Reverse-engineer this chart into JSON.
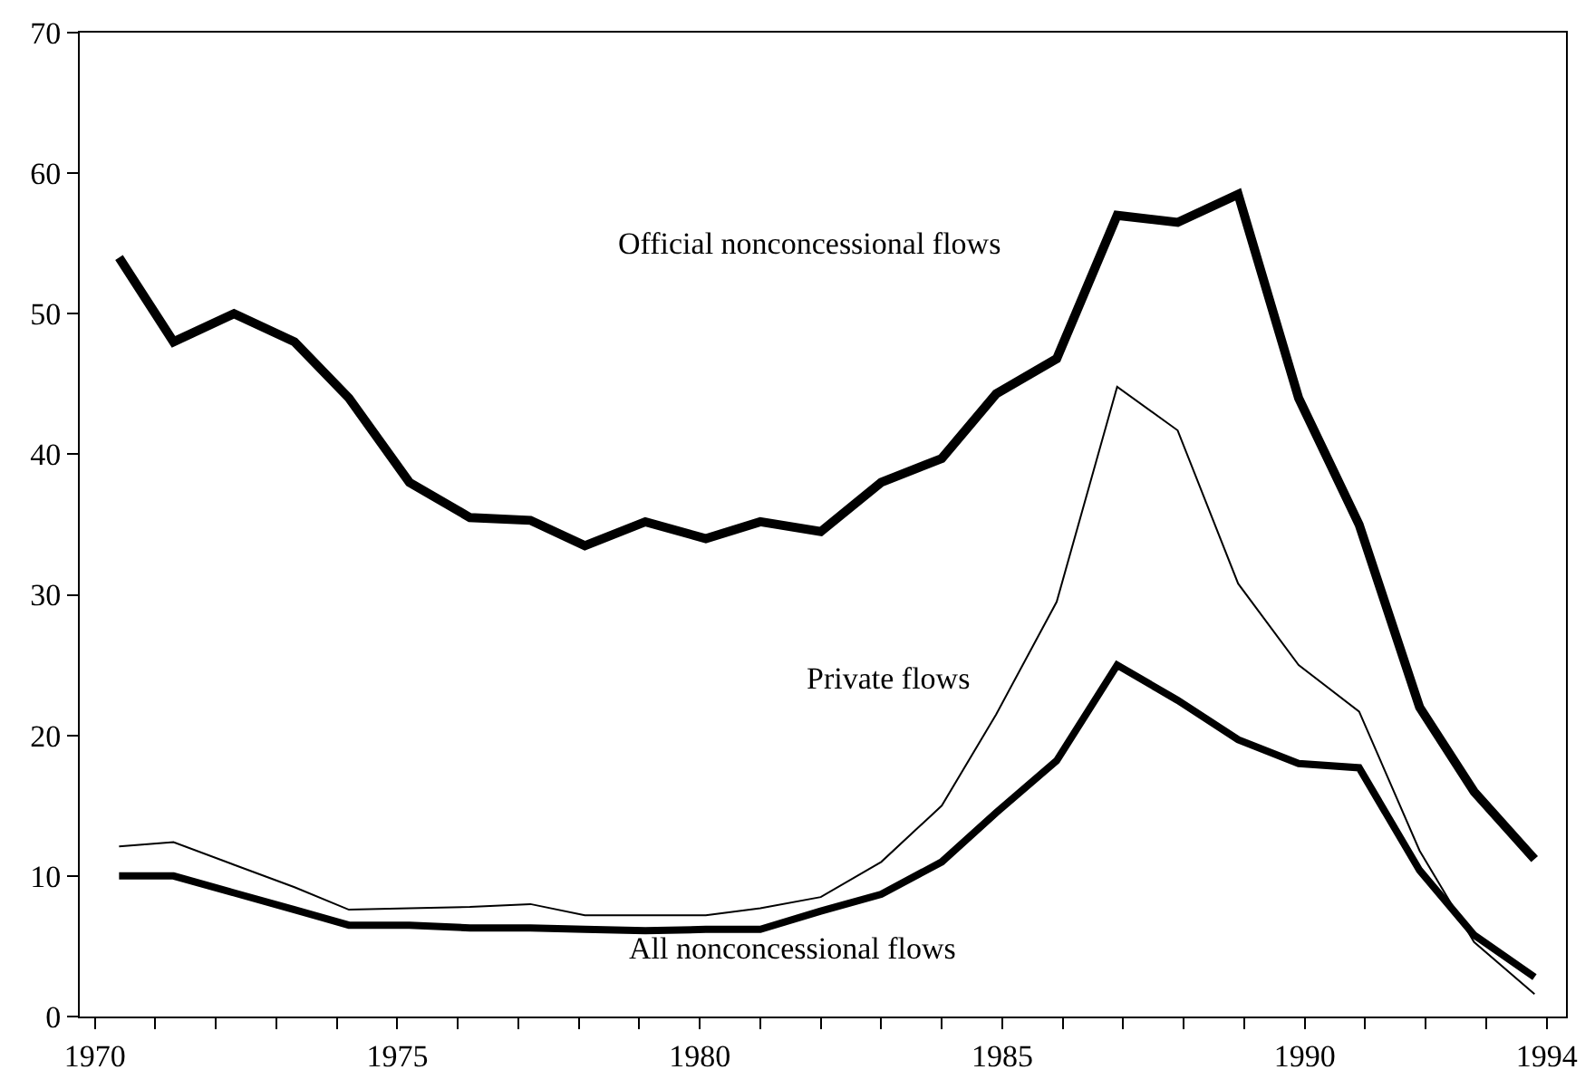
{
  "chart_data": {
    "type": "line",
    "x": [
      1970.4,
      1971.3,
      1972.3,
      1973.3,
      1974.2,
      1975.2,
      1976.2,
      1977.2,
      1978.1,
      1979.1,
      1980.1,
      1981.0,
      1982.0,
      1983.0,
      1984.0,
      1984.9,
      1985.9,
      1986.9,
      1987.9,
      1988.9,
      1989.9,
      1990.9,
      1991.9,
      1992.8,
      1993.8
    ],
    "series": [
      {
        "name": "Official nonconcessional flows",
        "color": "#000000",
        "values": [
          54,
          48,
          50,
          48,
          44,
          38,
          35.5,
          35.3,
          33.5,
          35.2,
          34,
          35.2,
          34.5,
          38,
          39.7,
          44.3,
          46.8,
          57,
          56.5,
          58.5,
          44,
          35,
          22,
          16,
          11.2
        ]
      },
      {
        "name": "Private flows",
        "color": "#000000",
        "values": [
          12.1,
          12.4,
          10.8,
          9.2,
          7.6,
          7.7,
          7.8,
          8,
          7.2,
          7.2,
          7.2,
          7.7,
          8.5,
          11,
          15,
          21.5,
          29.5,
          44.8,
          41.7,
          30.8,
          25,
          21.7,
          11.8,
          5.3,
          1.6
        ]
      },
      {
        "name": "All nonconcessional flows",
        "color": "#000000",
        "values": [
          10,
          10,
          8.8,
          7.6,
          6.5,
          6.5,
          6.3,
          6.3,
          6.2,
          6.1,
          6.2,
          6.2,
          7.5,
          8.7,
          11,
          14.5,
          18.2,
          25,
          22.5,
          19.7,
          18,
          17.7,
          10.4,
          5.8,
          2.8
        ]
      }
    ],
    "xlim": [
      1969.75,
      1994.32
    ],
    "xticks": [
      1970,
      {
        "value": 1971,
        "label": null
      },
      {
        "value": 1972,
        "label": null
      },
      {
        "value": 1973,
        "label": null
      },
      {
        "value": 1974,
        "label": null
      },
      1975,
      {
        "value": 1976,
        "label": null
      },
      {
        "value": 1977,
        "label": null
      },
      {
        "value": 1978,
        "label": null
      },
      {
        "value": 1979,
        "label": null
      },
      1980,
      {
        "value": 1981,
        "label": null
      },
      {
        "value": 1982,
        "label": null
      },
      {
        "value": 1983,
        "label": null
      },
      {
        "value": 1984,
        "label": null
      },
      1985,
      {
        "value": 1986,
        "label": null
      },
      {
        "value": 1987,
        "label": null
      },
      {
        "value": 1988,
        "label": null
      },
      {
        "value": 1989,
        "label": null
      },
      1990,
      {
        "value": 1991,
        "label": null
      },
      {
        "value": 1992,
        "label": null
      },
      {
        "value": 1993,
        "label": null
      },
      1994
    ],
    "ylim": [
      0,
      70
    ],
    "yticks": [
      0,
      10,
      20,
      30,
      40,
      50,
      60,
      70
    ],
    "grid": false,
    "legend": false,
    "marker": "none",
    "line_style": "solid"
  }
}
